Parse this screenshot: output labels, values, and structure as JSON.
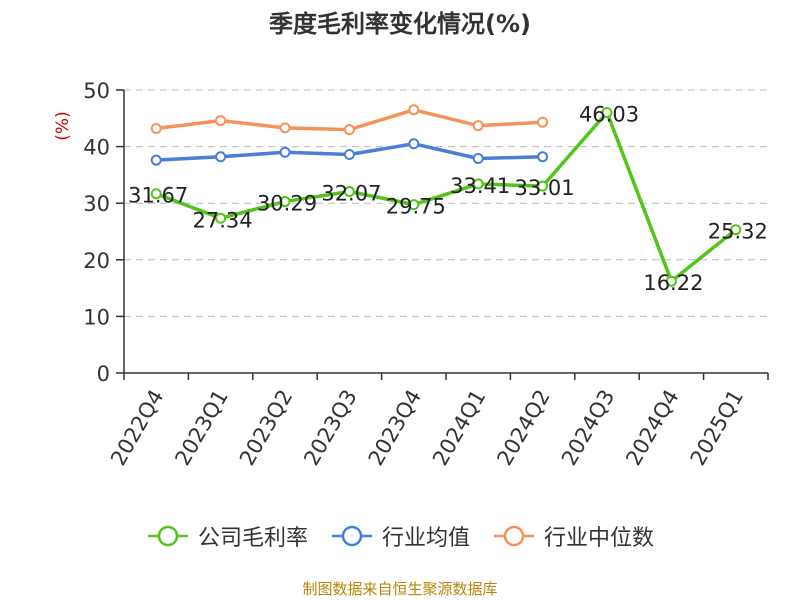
{
  "chart_data": {
    "type": "line",
    "title": "季度毛利率变化情况(%)",
    "ylabel": "(%)",
    "xlabel": "",
    "ylim": [
      0,
      50
    ],
    "yticks": [
      0,
      10,
      20,
      30,
      40,
      50
    ],
    "grid": true,
    "legend_position": "bottom",
    "categories": [
      "2022Q4",
      "2023Q1",
      "2023Q2",
      "2023Q3",
      "2023Q4",
      "2024Q1",
      "2024Q2",
      "2024Q3",
      "2024Q4",
      "2025Q1"
    ],
    "series": [
      {
        "name": "公司毛利率",
        "color": "#52c41a",
        "values": [
          31.67,
          27.34,
          30.29,
          32.07,
          29.75,
          33.41,
          33.01,
          46.03,
          16.22,
          25.32
        ],
        "labels": [
          "31.67",
          "27.34",
          "30.29",
          "32.07",
          "29.75",
          "33.41",
          "33.01",
          "46.03",
          "16.22",
          "25.32"
        ]
      },
      {
        "name": "行业均值",
        "color": "#4a7fd9",
        "values": [
          37.6,
          38.2,
          39.0,
          38.6,
          40.5,
          37.9,
          38.2,
          null,
          null,
          null
        ]
      },
      {
        "name": "行业中位数",
        "color": "#f5925a",
        "values": [
          43.2,
          44.6,
          43.3,
          43.0,
          46.5,
          43.7,
          44.3,
          null,
          null,
          null
        ]
      }
    ]
  },
  "source_note": "制图数据来自恒生聚源数据库"
}
